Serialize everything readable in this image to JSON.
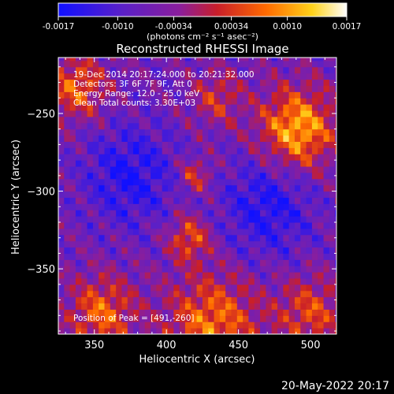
{
  "chart_data": {
    "type": "heatmap",
    "title": "Reconstructed RHESSI Image",
    "xlabel": "Heliocentric X (arcsec)",
    "ylabel": "Heliocentric Y (arcsec)",
    "xlim": [
      325,
      518
    ],
    "ylim": [
      -392,
      -214
    ],
    "x_ticks": [
      350,
      400,
      450,
      500
    ],
    "y_ticks": [
      -250,
      -300,
      -350
    ],
    "colorbar": {
      "min": -0.0017,
      "max": 0.0017,
      "tick_labels": [
        "-0.0017",
        "-0.0010",
        "-0.00034",
        "0.00034",
        "0.0010",
        "0.0017"
      ],
      "tick_values": [
        -0.0017,
        -0.001,
        -0.00034,
        0.00034,
        0.001,
        0.0017
      ],
      "units_label": "(photons cm⁻² s⁻¹ asec⁻²)",
      "colormap": "rainbow-heat (blue-purple-red-orange-yellow-white)"
    },
    "annotations": [
      "19-Dec-2014 20:17:24.000 to 20:21:32.000",
      "Detectors: 3F 6F 7F 9F, Att 0",
      "Energy Range: 12.0 - 25.0 keV",
      "Clean      Total counts: 3.30E+03"
    ],
    "peak_label": "Position of Peak = [491,-260]",
    "peak": [
      491,
      -260
    ],
    "sources": [
      {
        "x": 491,
        "y": -260,
        "sigma": 18,
        "value": 0.0017
      },
      {
        "x": 338,
        "y": -233,
        "sigma": 14,
        "value": 0.0012
      },
      {
        "x": 355,
        "y": -378,
        "sigma": 16,
        "value": 0.0012
      },
      {
        "x": 432,
        "y": -385,
        "sigma": 22,
        "value": 0.0013
      },
      {
        "x": 500,
        "y": -378,
        "sigma": 16,
        "value": 0.001
      },
      {
        "x": 416,
        "y": -330,
        "sigma": 10,
        "value": 0.0011
      },
      {
        "x": 435,
        "y": -240,
        "sigma": 12,
        "value": 0.0008
      },
      {
        "x": 420,
        "y": -290,
        "sigma": 8,
        "value": 0.0009
      }
    ],
    "background_regions": [
      {
        "x": 375,
        "y": -290,
        "sigma": 22,
        "value": -0.0009
      },
      {
        "x": 470,
        "y": -310,
        "sigma": 22,
        "value": -0.0009
      }
    ]
  },
  "footer": {
    "timestamp": "20-May-2022 20:17"
  }
}
